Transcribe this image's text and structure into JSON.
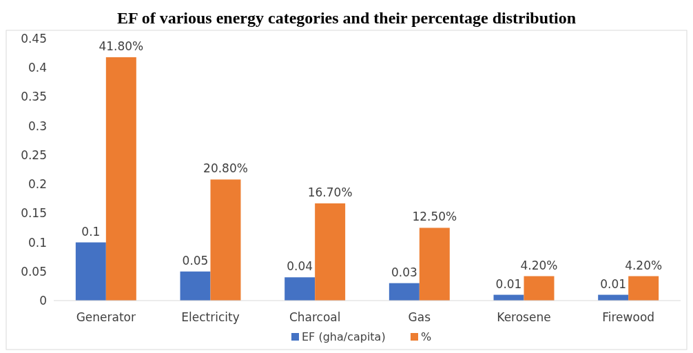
{
  "chart_data": {
    "type": "bar",
    "title": "EF of various energy categories and their percentage distribution",
    "categories": [
      "Generator",
      "Electricity",
      "Charcoal",
      "Gas",
      "Kerosene",
      "Firewood"
    ],
    "series": [
      {
        "name": "EF (gha/capita)",
        "color": "#4472c4",
        "values": [
          0.1,
          0.05,
          0.04,
          0.03,
          0.01,
          0.01
        ],
        "value_labels": [
          "0.1",
          "0.05",
          "0.04",
          "0.03",
          "0.01",
          "0.01"
        ]
      },
      {
        "name": "%",
        "color": "#ed7d31",
        "values": [
          0.418,
          0.208,
          0.167,
          0.125,
          0.042,
          0.042
        ],
        "value_labels": [
          "41.80%",
          "20.80%",
          "16.70%",
          "12.50%",
          "4.20%",
          "4.20%"
        ]
      }
    ],
    "ylim": [
      0,
      0.45
    ],
    "yticks": [
      0,
      0.05,
      0.1,
      0.15,
      0.2,
      0.25,
      0.3,
      0.35,
      0.4,
      0.45
    ],
    "grid": false,
    "legend": "bottom"
  }
}
